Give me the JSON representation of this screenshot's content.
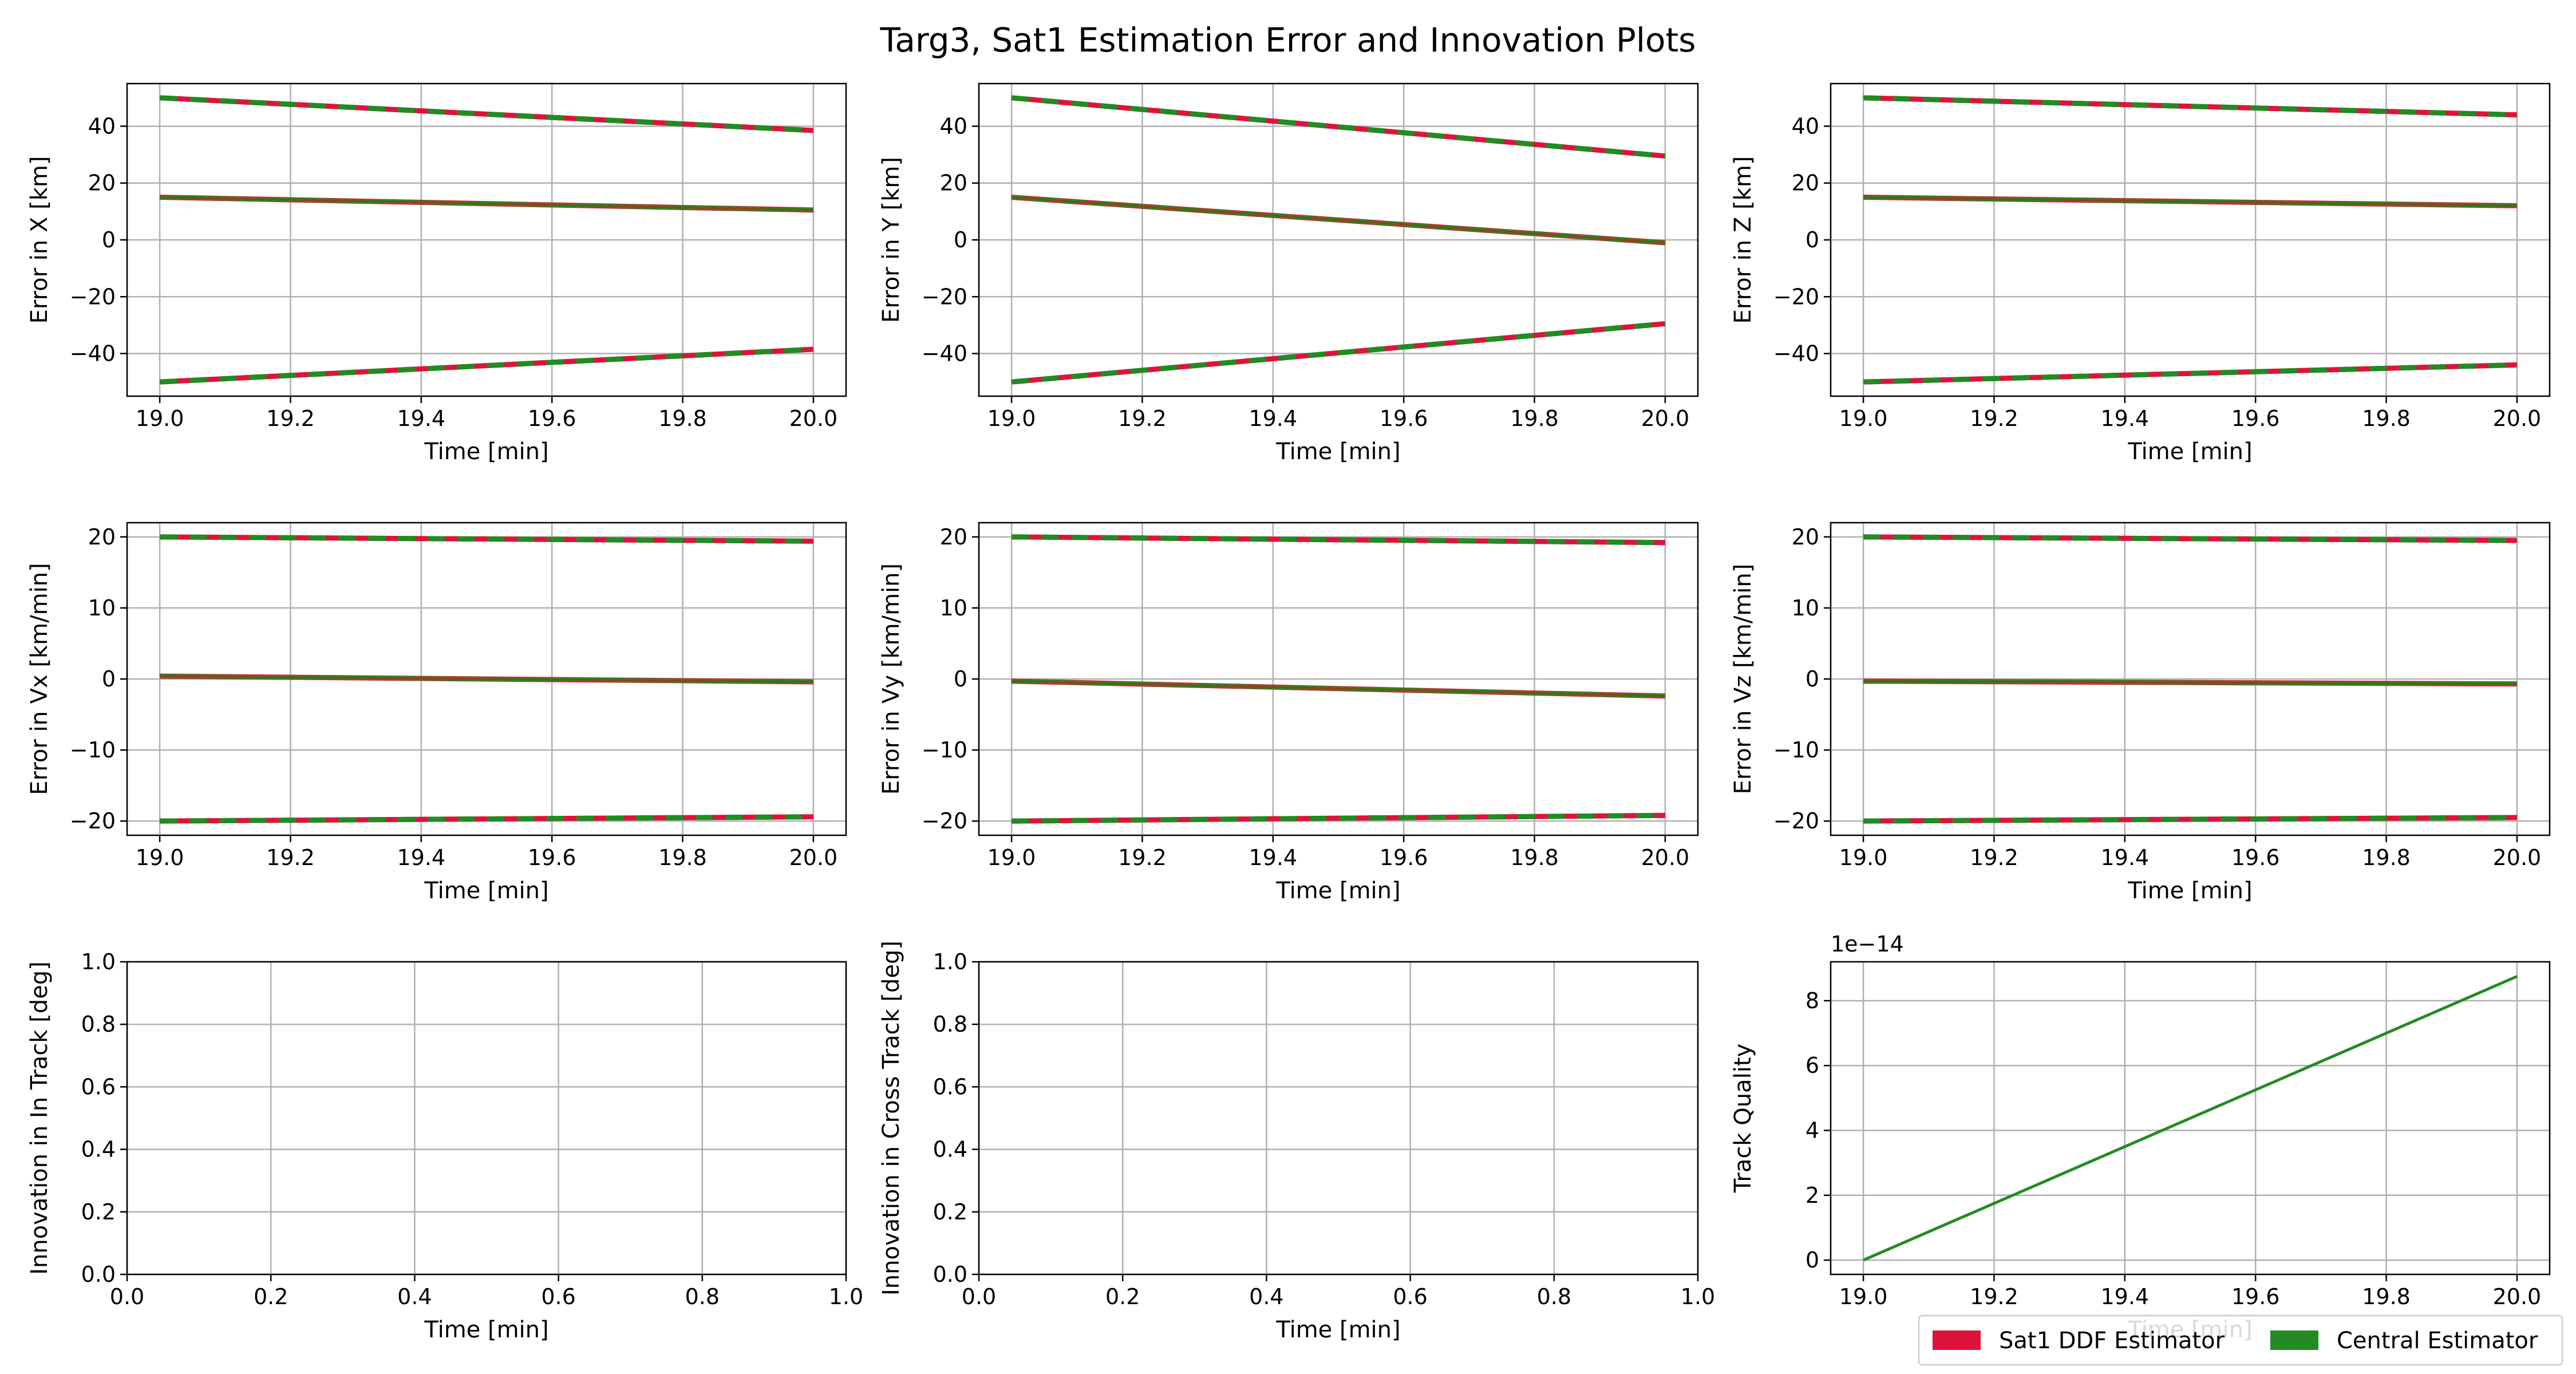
{
  "figure": {
    "title": "Targ3, Sat1 Estimation Error and Innovation Plots"
  },
  "legend": {
    "placement": "bottom-right",
    "items": [
      {
        "label": "Sat1 DDF Estimator",
        "color": "#dc143c"
      },
      {
        "label": "Central Estimator",
        "color": "#228b22"
      }
    ]
  },
  "colors": {
    "sat1": "#dc143c",
    "central": "#228b22",
    "error_line": "#8b4513",
    "grid": "#b0b0b0"
  },
  "chart_data": [
    {
      "type": "line",
      "xlabel": "Time [min]",
      "ylabel": "Error in X [km]",
      "xlim": [
        18.95,
        20.05
      ],
      "ylim": [
        -55,
        55
      ],
      "xticks": [
        "19.0",
        "19.2",
        "19.4",
        "19.6",
        "19.8",
        "20.0"
      ],
      "yticks": [
        "-40",
        "-20",
        "0",
        "20",
        "40"
      ],
      "error": {
        "x": [
          19.0,
          20.0
        ],
        "y": [
          15,
          10.5
        ]
      },
      "bound_upper": {
        "x": [
          19.0,
          20.0
        ],
        "y": [
          50,
          38.5
        ]
      },
      "bound_lower": {
        "x": [
          19.0,
          20.0
        ],
        "y": [
          -50,
          -38.5
        ]
      }
    },
    {
      "type": "line",
      "xlabel": "Time [min]",
      "ylabel": "Error in Y [km]",
      "xlim": [
        18.95,
        20.05
      ],
      "ylim": [
        -55,
        55
      ],
      "xticks": [
        "19.0",
        "19.2",
        "19.4",
        "19.6",
        "19.8",
        "20.0"
      ],
      "yticks": [
        "-40",
        "-20",
        "0",
        "20",
        "40"
      ],
      "error": {
        "x": [
          19.0,
          20.0
        ],
        "y": [
          15,
          -1
        ]
      },
      "bound_upper": {
        "x": [
          19.0,
          20.0
        ],
        "y": [
          50,
          29.5
        ]
      },
      "bound_lower": {
        "x": [
          19.0,
          20.0
        ],
        "y": [
          -50,
          -29.5
        ]
      }
    },
    {
      "type": "line",
      "xlabel": "Time [min]",
      "ylabel": "Error in Z [km]",
      "xlim": [
        18.95,
        20.05
      ],
      "ylim": [
        -55,
        55
      ],
      "xticks": [
        "19.0",
        "19.2",
        "19.4",
        "19.6",
        "19.8",
        "20.0"
      ],
      "yticks": [
        "-40",
        "-20",
        "0",
        "20",
        "40"
      ],
      "error": {
        "x": [
          19.0,
          20.0
        ],
        "y": [
          15,
          12
        ]
      },
      "bound_upper": {
        "x": [
          19.0,
          20.0
        ],
        "y": [
          50,
          44
        ]
      },
      "bound_lower": {
        "x": [
          19.0,
          20.0
        ],
        "y": [
          -50,
          -44
        ]
      }
    },
    {
      "type": "line",
      "xlabel": "Time [min]",
      "ylabel": "Error in Vx [km/min]",
      "xlim": [
        18.95,
        20.05
      ],
      "ylim": [
        -22,
        22
      ],
      "xticks": [
        "19.0",
        "19.2",
        "19.4",
        "19.6",
        "19.8",
        "20.0"
      ],
      "yticks": [
        "-20",
        "-10",
        "0",
        "10",
        "20"
      ],
      "error": {
        "x": [
          19.0,
          20.0
        ],
        "y": [
          0.4,
          -0.4
        ]
      },
      "bound_upper": {
        "x": [
          19.0,
          20.0
        ],
        "y": [
          20,
          19.4
        ]
      },
      "bound_lower": {
        "x": [
          19.0,
          20.0
        ],
        "y": [
          -20,
          -19.4
        ]
      }
    },
    {
      "type": "line",
      "xlabel": "Time [min]",
      "ylabel": "Error in Vy [km/min]",
      "xlim": [
        18.95,
        20.05
      ],
      "ylim": [
        -22,
        22
      ],
      "xticks": [
        "19.0",
        "19.2",
        "19.4",
        "19.6",
        "19.8",
        "20.0"
      ],
      "yticks": [
        "-20",
        "-10",
        "0",
        "10",
        "20"
      ],
      "error": {
        "x": [
          19.0,
          20.0
        ],
        "y": [
          -0.3,
          -2.4
        ]
      },
      "bound_upper": {
        "x": [
          19.0,
          20.0
        ],
        "y": [
          20,
          19.2
        ]
      },
      "bound_lower": {
        "x": [
          19.0,
          20.0
        ],
        "y": [
          -20,
          -19.2
        ]
      }
    },
    {
      "type": "line",
      "xlabel": "Time [min]",
      "ylabel": "Error in Vz [km/min]",
      "xlim": [
        18.95,
        20.05
      ],
      "ylim": [
        -22,
        22
      ],
      "xticks": [
        "19.0",
        "19.2",
        "19.4",
        "19.6",
        "19.8",
        "20.0"
      ],
      "yticks": [
        "-20",
        "-10",
        "0",
        "10",
        "20"
      ],
      "error": {
        "x": [
          19.0,
          20.0
        ],
        "y": [
          -0.3,
          -0.7
        ]
      },
      "bound_upper": {
        "x": [
          19.0,
          20.0
        ],
        "y": [
          20,
          19.5
        ]
      },
      "bound_lower": {
        "x": [
          19.0,
          20.0
        ],
        "y": [
          -20,
          -19.5
        ]
      }
    },
    {
      "type": "line",
      "xlabel": "Time [min]",
      "ylabel": "Innovation in In Track [deg]",
      "xlim": [
        0,
        1
      ],
      "ylim": [
        0,
        1
      ],
      "xticks": [
        "0.0",
        "0.2",
        "0.4",
        "0.6",
        "0.8",
        "1.0"
      ],
      "yticks": [
        "0.0",
        "0.2",
        "0.4",
        "0.6",
        "0.8",
        "1.0"
      ]
    },
    {
      "type": "line",
      "xlabel": "Time [min]",
      "ylabel": "Innovation in Cross Track [deg]",
      "xlim": [
        0,
        1
      ],
      "ylim": [
        0,
        1
      ],
      "xticks": [
        "0.0",
        "0.2",
        "0.4",
        "0.6",
        "0.8",
        "1.0"
      ],
      "yticks": [
        "0.0",
        "0.2",
        "0.4",
        "0.6",
        "0.8",
        "1.0"
      ]
    },
    {
      "type": "line",
      "xlabel": "Time [min]",
      "ylabel": "Track Quality",
      "offset_label": "1e−14",
      "xlim": [
        18.95,
        20.05
      ],
      "ylim": [
        -0.44,
        9.2
      ],
      "xticks": [
        "19.0",
        "19.2",
        "19.4",
        "19.6",
        "19.8",
        "20.0"
      ],
      "yticks": [
        "0",
        "2",
        "4",
        "6",
        "8"
      ],
      "track": {
        "x": [
          19.0,
          20.0
        ],
        "y": [
          0,
          8.75
        ]
      }
    }
  ]
}
